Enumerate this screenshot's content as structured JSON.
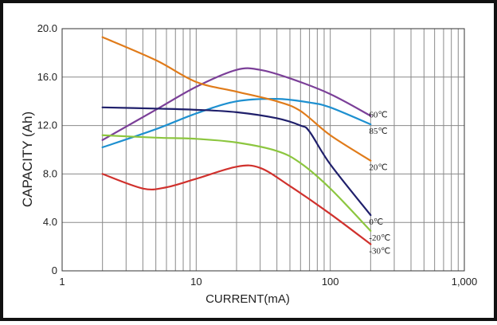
{
  "chart_data": {
    "type": "line",
    "xscale": "log",
    "xlabel": "CURRENT(mA)",
    "ylabel": "CAPACITY (Ah)",
    "xlim": [
      1,
      1000
    ],
    "ylim": [
      0,
      20
    ],
    "xticks": [
      {
        "value": 1,
        "label": "1"
      },
      {
        "value": 10,
        "label": "10"
      },
      {
        "value": 100,
        "label": "100"
      },
      {
        "value": 1000,
        "label": "1,000"
      }
    ],
    "yticks": [
      {
        "value": 0,
        "label": "0"
      },
      {
        "value": 4,
        "label": "4.0"
      },
      {
        "value": 8,
        "label": "8.0"
      },
      {
        "value": 12,
        "label": "12.0"
      },
      {
        "value": 16,
        "label": "16.0"
      },
      {
        "value": 20,
        "label": "20.0"
      }
    ],
    "grid": true,
    "series": [
      {
        "name": "60℃",
        "color": "#7b3f98",
        "points": [
          [
            2,
            10.8
          ],
          [
            5,
            13.3
          ],
          [
            10,
            15.2
          ],
          [
            20,
            16.6
          ],
          [
            30,
            16.6
          ],
          [
            50,
            15.9
          ],
          [
            100,
            14.6
          ],
          [
            200,
            12.8
          ]
        ]
      },
      {
        "name": "85℃",
        "color": "#1e90d0",
        "points": [
          [
            2,
            10.2
          ],
          [
            5,
            11.7
          ],
          [
            10,
            13.0
          ],
          [
            20,
            14.0
          ],
          [
            40,
            14.2
          ],
          [
            70,
            13.9
          ],
          [
            100,
            13.5
          ],
          [
            200,
            12.1
          ]
        ]
      },
      {
        "name": "20℃",
        "color": "#e07b1a",
        "points": [
          [
            2,
            19.3
          ],
          [
            5,
            17.4
          ],
          [
            10,
            15.6
          ],
          [
            20,
            14.8
          ],
          [
            40,
            14.0
          ],
          [
            60,
            13.2
          ],
          [
            100,
            11.2
          ],
          [
            200,
            9.1
          ]
        ]
      },
      {
        "name": "0℃",
        "color": "#1f1f6b",
        "points": [
          [
            2,
            13.5
          ],
          [
            5,
            13.4
          ],
          [
            10,
            13.3
          ],
          [
            20,
            13.1
          ],
          [
            40,
            12.6
          ],
          [
            60,
            12.0
          ],
          [
            70,
            11.5
          ],
          [
            100,
            8.8
          ],
          [
            200,
            4.6
          ]
        ]
      },
      {
        "name": "-20℃",
        "color": "#8cc63f",
        "points": [
          [
            2,
            11.2
          ],
          [
            5,
            11.0
          ],
          [
            10,
            10.9
          ],
          [
            20,
            10.6
          ],
          [
            40,
            9.9
          ],
          [
            60,
            8.9
          ],
          [
            100,
            6.8
          ],
          [
            200,
            3.3
          ]
        ]
      },
      {
        "name": "-30℃",
        "color": "#d0312d",
        "points": [
          [
            2,
            8.0
          ],
          [
            4,
            6.8
          ],
          [
            6,
            6.9
          ],
          [
            10,
            7.6
          ],
          [
            20,
            8.6
          ],
          [
            30,
            8.5
          ],
          [
            50,
            7.0
          ],
          [
            100,
            4.7
          ],
          [
            200,
            2.2
          ]
        ]
      }
    ]
  }
}
